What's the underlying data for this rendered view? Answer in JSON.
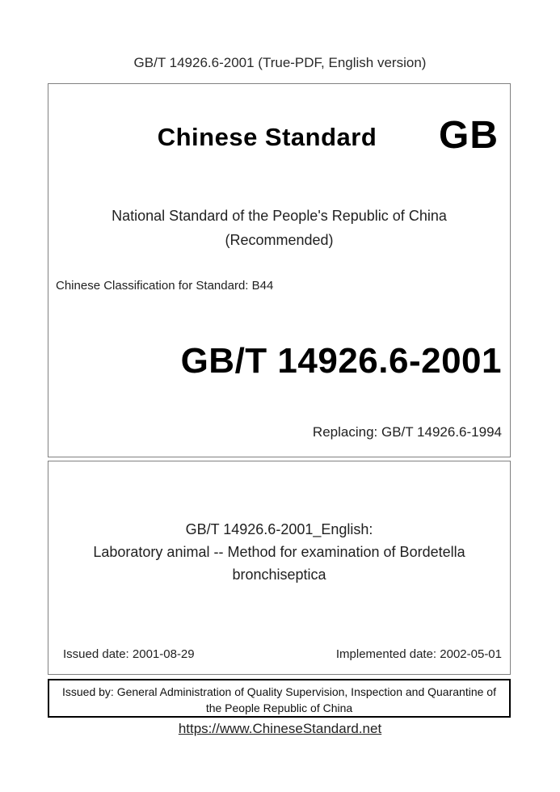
{
  "header": {
    "title": "GB/T 14926.6-2001 (True-PDF, English version)"
  },
  "cover": {
    "brand": "Chinese Standard",
    "logo": "GB",
    "national_line": "National Standard of the People's Republic of China",
    "recommended_line": "(Recommended)",
    "classification": "Chinese Classification for Standard: B44",
    "standard_code": "GB/T 14926.6-2001",
    "replacing": "Replacing: GB/T 14926.6-1994"
  },
  "title_block": {
    "lines": [
      "GB/T 14926.6-2001_English:",
      "Laboratory animal -- Method for examination of Bordetella",
      "bronchiseptica"
    ],
    "issued_date": "Issued date: 2001-08-29",
    "implemented_date": "Implemented date: 2002-05-01"
  },
  "issuer": {
    "lines": [
      "Issued by: General Administration of Quality Supervision, Inspection and Quarantine of",
      "the People Republic of China"
    ]
  },
  "footer": {
    "link": "https://www.ChineseStandard.net"
  },
  "colors": {
    "border_gray": "#808080",
    "border_black": "#000000",
    "text": "#212121",
    "heading": "#000000"
  }
}
